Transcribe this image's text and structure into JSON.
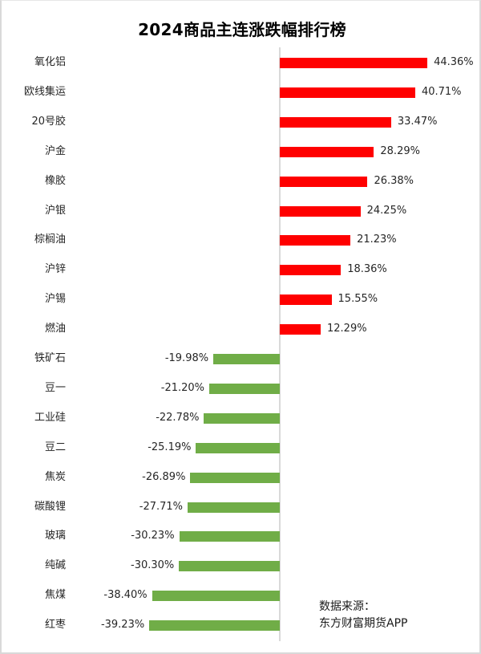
{
  "chart_data": {
    "type": "bar",
    "orientation": "horizontal",
    "title": "2024商品主连涨跌幅排行榜",
    "xlabel": "",
    "ylabel": "",
    "grid": false,
    "legend": null,
    "categories": [
      "氧化铝",
      "欧线集运",
      "20号胶",
      "沪金",
      "橡胶",
      "沪银",
      "棕榈油",
      "沪锌",
      "沪锡",
      "燃油",
      "铁矿石",
      "豆一",
      "工业硅",
      "豆二",
      "焦炭",
      "碳酸锂",
      "玻璃",
      "纯碱",
      "焦煤",
      "红枣"
    ],
    "values": [
      44.36,
      40.71,
      33.47,
      28.29,
      26.38,
      24.25,
      21.23,
      18.36,
      15.55,
      12.29,
      -19.98,
      -21.2,
      -22.78,
      -25.19,
      -26.89,
      -27.71,
      -30.23,
      -30.3,
      -38.4,
      -39.23
    ],
    "labels": [
      "44.36%",
      "40.71%",
      "33.47%",
      "28.29%",
      "26.38%",
      "24.25%",
      "21.23%",
      "18.36%",
      "15.55%",
      "12.29%",
      "-19.98%",
      "-21.20%",
      "-22.78%",
      "-25.19%",
      "-26.89%",
      "-27.71%",
      "-30.23%",
      "-30.30%",
      "-38.40%",
      "-39.23%"
    ],
    "unit": "%",
    "colors": {
      "positive": "#ff0000",
      "negative": "#70ad47",
      "axis": "#d9d9d9"
    },
    "annotations": [
      "数据来源：",
      "东方财富期货APP"
    ]
  },
  "title": "2024商品主连涨跌幅排行榜",
  "source": {
    "line1": "数据来源：",
    "line2": "东方财富期货APP"
  }
}
